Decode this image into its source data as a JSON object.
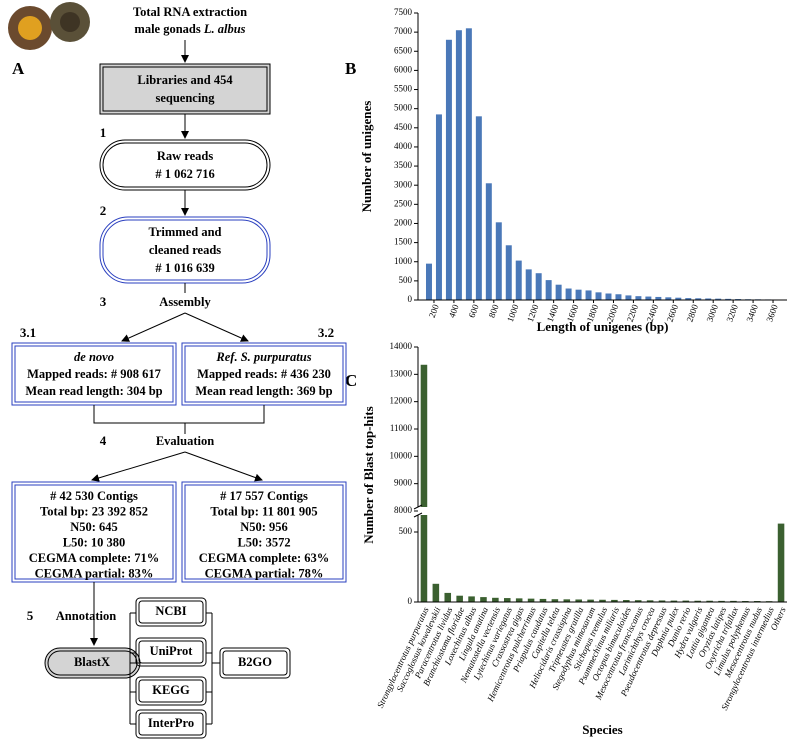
{
  "panel_labels": {
    "a": "A",
    "b": "B",
    "c": "C"
  },
  "flowchart": {
    "header": {
      "line1": "Total RNA extraction",
      "line2": "male gonads",
      "species": "L. albus"
    },
    "sequencing": [
      "Libraries and 454",
      "sequencing"
    ],
    "step1": {
      "number": "1",
      "lines": [
        "Raw reads",
        "# 1 062 716"
      ]
    },
    "step2": {
      "number": "2",
      "lines": [
        "Trimmed and",
        "cleaned reads",
        "# 1 016 639"
      ]
    },
    "step3": {
      "number": "3",
      "label": "Assembly",
      "denovo": {
        "number": "3.1",
        "lines": [
          "de novo",
          "Mapped reads: # 908 617",
          "Mean read length: 304 bp"
        ]
      },
      "reference": {
        "number": "3.2",
        "lines": [
          "Ref. S. purpuratus",
          "Mapped reads: # 436 230",
          "Mean read length: 369 bp"
        ]
      }
    },
    "step4": {
      "number": "4",
      "label": "Evaluation",
      "left": [
        "# 42 530 Contigs",
        "Total bp: 23 392 852",
        "N50: 645",
        "L50: 10 380",
        "CEGMA complete: 71%",
        "CEGMA partial: 83%"
      ],
      "right": [
        "# 17 557 Contigs",
        "Total bp: 11 801 905",
        "N50: 956",
        "L50: 3572",
        "CEGMA complete: 63%",
        "CEGMA partial: 78%"
      ]
    },
    "step5": {
      "number": "5",
      "label": "Annotation",
      "blast": "BlastX",
      "databases": [
        "NCBI",
        "UniProt",
        "KEGG",
        "InterPro"
      ],
      "b2go": "B2GO"
    }
  },
  "chart_data": [
    {
      "type": "histogram",
      "xlabel": "Length of unigenes (bp)",
      "ylabel": "Number of unigenes",
      "bins": [
        100,
        200,
        300,
        400,
        500,
        600,
        700,
        800,
        900,
        1000,
        1100,
        1200,
        1300,
        1400,
        1500,
        1600,
        1700,
        1800,
        1900,
        2000,
        2100,
        2200,
        2300,
        2400,
        2500,
        2600,
        2700,
        2800,
        2900,
        3000,
        3100,
        3200,
        3300,
        3400,
        3500,
        3600,
        3700
      ],
      "values": [
        950,
        4850,
        6800,
        7050,
        7100,
        4800,
        3050,
        2030,
        1430,
        1030,
        800,
        700,
        520,
        400,
        300,
        270,
        250,
        200,
        170,
        150,
        120,
        100,
        90,
        80,
        70,
        60,
        50,
        45,
        40,
        35,
        30,
        25,
        20,
        18,
        15,
        12
      ],
      "color": "#4a78b8",
      "xlim": [
        100,
        3700
      ],
      "ylim": [
        0,
        7500
      ],
      "xticks": [
        200,
        400,
        600,
        800,
        1000,
        1200,
        1400,
        1600,
        1800,
        2000,
        2200,
        2400,
        2600,
        2800,
        3000,
        3200,
        3400,
        3600
      ],
      "yticks": [
        0,
        500,
        1000,
        1500,
        2000,
        2500,
        3000,
        3500,
        4000,
        4500,
        5000,
        5500,
        6000,
        6500,
        7000,
        7500
      ]
    },
    {
      "type": "bar",
      "xlabel": "Species",
      "ylabel": "Number of Blast top-hits",
      "categories": [
        "Strongylocentrotus purpuratus",
        "Saccoglossus kowalevskii",
        "Paracentrotus lividus",
        "Branchiostoma floridae",
        "Loxechinus albus",
        "Lingula anatina",
        "Nematostella vectensis",
        "Lytechinus variegatus",
        "Crassostrea gigas",
        "Hemicentrotus pulcherrimus",
        "Priapulus caudatus",
        "Capitella teleta",
        "Heliocidaris crassispina",
        "Tripneustes gratilla",
        "Stegodyphus mimosarum",
        "Stichopus tremulus",
        "Psammechinus miliaris",
        "Octopus bimaculoides",
        "Mesocentrotus franciscanus",
        "Larimichthys crocea",
        "Pseudocentrotus depressus",
        "Daphnia pulex",
        "Danio rerio",
        "Hydra vulgaris",
        "Lottia gigantea",
        "Oryzias latipes",
        "Oxytricha trifallax",
        "Limulus polyphemus",
        "Mesocentrotus nudus",
        "Strongylocentrotus intermedius",
        "Others"
      ],
      "values": [
        13350,
        130,
        65,
        45,
        40,
        35,
        30,
        28,
        26,
        24,
        22,
        20,
        19,
        18,
        17,
        16,
        15,
        14,
        13,
        12,
        11,
        10,
        10,
        9,
        9,
        8,
        8,
        7,
        7,
        6,
        560
      ],
      "color": "#3b6030",
      "ylim": [
        0,
        14000
      ],
      "axis_break": [
        650,
        8000
      ],
      "yticks": [
        0,
        500,
        8000,
        9000,
        10000,
        11000,
        12000,
        13000,
        14000
      ]
    }
  ]
}
